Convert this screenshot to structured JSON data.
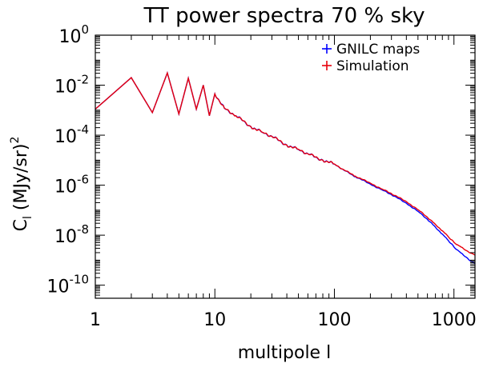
{
  "chart_data": {
    "type": "line",
    "title": "TT power spectra 70 % sky",
    "xlabel": "multipole l",
    "ylabel_main": "C",
    "ylabel_sub": "l",
    "ylabel_rest": " (MJy/sr)",
    "ylabel_sup": "2",
    "x_scale": "log",
    "y_scale": "log",
    "xlim": [
      1,
      1500
    ],
    "ylim": [
      3e-11,
      1
    ],
    "grid": false,
    "legend_position": "top-right",
    "x_ticks": [
      {
        "value": 1,
        "label": "1"
      },
      {
        "value": 10,
        "label": "10"
      },
      {
        "value": 100,
        "label": "100"
      },
      {
        "value": 1000,
        "label": "1000"
      }
    ],
    "y_ticks": [
      {
        "value": 1,
        "base": "10",
        "exp": "0"
      },
      {
        "value": 0.01,
        "base": "10",
        "exp": "-2"
      },
      {
        "value": 0.0001,
        "base": "10",
        "exp": "-4"
      },
      {
        "value": 1e-06,
        "base": "10",
        "exp": "-6"
      },
      {
        "value": 1e-08,
        "base": "10",
        "exp": "-8"
      },
      {
        "value": 1e-10,
        "base": "10",
        "exp": "-10"
      }
    ],
    "series": [
      {
        "name": "GNILC maps",
        "color": "#0000ff",
        "x": [
          1,
          2,
          3,
          4,
          5,
          6,
          7,
          8,
          9,
          10,
          12,
          15,
          20,
          25,
          30,
          40,
          50,
          60,
          80,
          100,
          120,
          150,
          200,
          250,
          300,
          400,
          500,
          600,
          700,
          800,
          900,
          1000,
          1100,
          1200,
          1300,
          1400,
          1500
        ],
        "y": [
          0.0011,
          0.02,
          0.0008,
          0.031,
          0.0007,
          0.019,
          0.0011,
          0.01,
          0.0006,
          0.0045,
          0.0012,
          0.0006,
          0.00022,
          0.00013,
          9e-05,
          4e-05,
          2.7e-05,
          1.8e-05,
          1e-05,
          7e-06,
          4e-06,
          2.2e-06,
          1.1e-06,
          6.5e-07,
          4.2e-07,
          1.9e-07,
          9e-08,
          4.3e-08,
          2.1e-08,
          1.1e-08,
          6e-09,
          3.4e-09,
          2.3e-09,
          1.6e-09,
          1.2e-09,
          9e-10,
          7.5e-10
        ]
      },
      {
        "name": "Simulation",
        "color": "#e8000b",
        "x": [
          1,
          2,
          3,
          4,
          5,
          6,
          7,
          8,
          9,
          10,
          12,
          15,
          20,
          25,
          30,
          40,
          50,
          60,
          80,
          100,
          120,
          150,
          200,
          250,
          300,
          400,
          500,
          600,
          700,
          800,
          900,
          1000,
          1100,
          1200,
          1300,
          1400,
          1500
        ],
        "y": [
          0.0011,
          0.02,
          0.0008,
          0.031,
          0.0007,
          0.019,
          0.0011,
          0.01,
          0.0006,
          0.0045,
          0.0012,
          0.0006,
          0.00022,
          0.00013,
          9e-05,
          4e-05,
          2.7e-05,
          1.8e-05,
          1e-05,
          7e-06,
          4.1e-06,
          2.3e-06,
          1.2e-06,
          7e-07,
          4.6e-07,
          2.2e-07,
          1.05e-07,
          5.2e-08,
          2.7e-08,
          1.5e-08,
          8.5e-09,
          5.2e-09,
          3.8e-09,
          2.9e-09,
          2.3e-09,
          1.9e-09,
          1.6e-09
        ]
      }
    ]
  }
}
